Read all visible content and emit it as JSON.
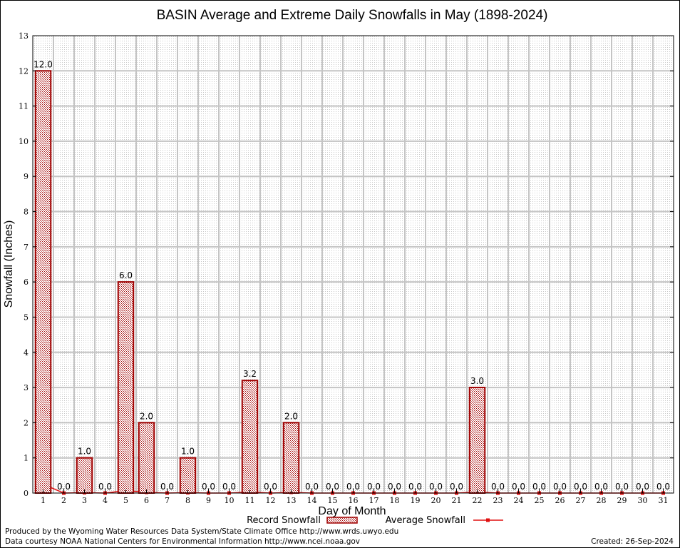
{
  "chart_data": {
    "type": "bar",
    "title": "BASIN Average and Extreme Daily Snowfalls in May (1898-2024)",
    "xlabel": "Day of Month",
    "ylabel": "Snowfall (Inches)",
    "ylim": [
      0,
      13
    ],
    "yticks": [
      "0",
      "1",
      "2",
      "3",
      "4",
      "5",
      "6",
      "7",
      "8",
      "9",
      "10",
      "11",
      "12",
      "13"
    ],
    "categories": [
      "1",
      "2",
      "3",
      "4",
      "5",
      "6",
      "7",
      "8",
      "9",
      "10",
      "11",
      "12",
      "13",
      "14",
      "15",
      "16",
      "17",
      "18",
      "19",
      "20",
      "21",
      "22",
      "23",
      "24",
      "25",
      "26",
      "27",
      "28",
      "29",
      "30",
      "31"
    ],
    "series": [
      {
        "name": "Record Snowfall",
        "kind": "bar",
        "color": "#a00000",
        "values": [
          12.0,
          0.0,
          1.0,
          0.0,
          6.0,
          2.0,
          0.0,
          1.0,
          0.0,
          0.0,
          3.2,
          0.0,
          2.0,
          0.0,
          0.0,
          0.0,
          0.0,
          0.0,
          0.0,
          0.0,
          0.0,
          3.0,
          0.0,
          0.0,
          0.0,
          0.0,
          0.0,
          0.0,
          0.0,
          0.0,
          0.0
        ],
        "labels": [
          "12.0",
          "0.0",
          "1.0",
          "0.0",
          "6.0",
          "2.0",
          "0.0",
          "1.0",
          "0.0",
          "0.0",
          "3.2",
          "0.0",
          "2.0",
          "0.0",
          "0.0",
          "0.0",
          "0.0",
          "0.0",
          "0.0",
          "0.0",
          "0.0",
          "3.0",
          "0.0",
          "0.0",
          "0.0",
          "0.0",
          "0.0",
          "0.0",
          "0.0",
          "0.0",
          "0.0"
        ]
      },
      {
        "name": "Average Snowfall",
        "kind": "line",
        "color": "#e01010",
        "values": [
          0.25,
          0.0,
          0.01,
          0.0,
          0.07,
          0.02,
          0.0,
          0.01,
          0.0,
          0.0,
          0.03,
          0.0,
          0.02,
          0.0,
          0.0,
          0.0,
          0.0,
          0.0,
          0.0,
          0.0,
          0.0,
          0.03,
          0.0,
          0.0,
          0.0,
          0.0,
          0.0,
          0.0,
          0.0,
          0.0,
          0.0
        ]
      }
    ],
    "grid": true,
    "legend": "bottom-center"
  },
  "footer": {
    "produced_by": "Produced by the Wyoming Water Resources Data System/State Climate Office http://www.wrds.uwyo.edu",
    "courtesy": "Data courtesy NOAA National Centers for Environmental Information http://www.ncei.noaa.gov",
    "created": "Created:  26-Sep-2024"
  }
}
